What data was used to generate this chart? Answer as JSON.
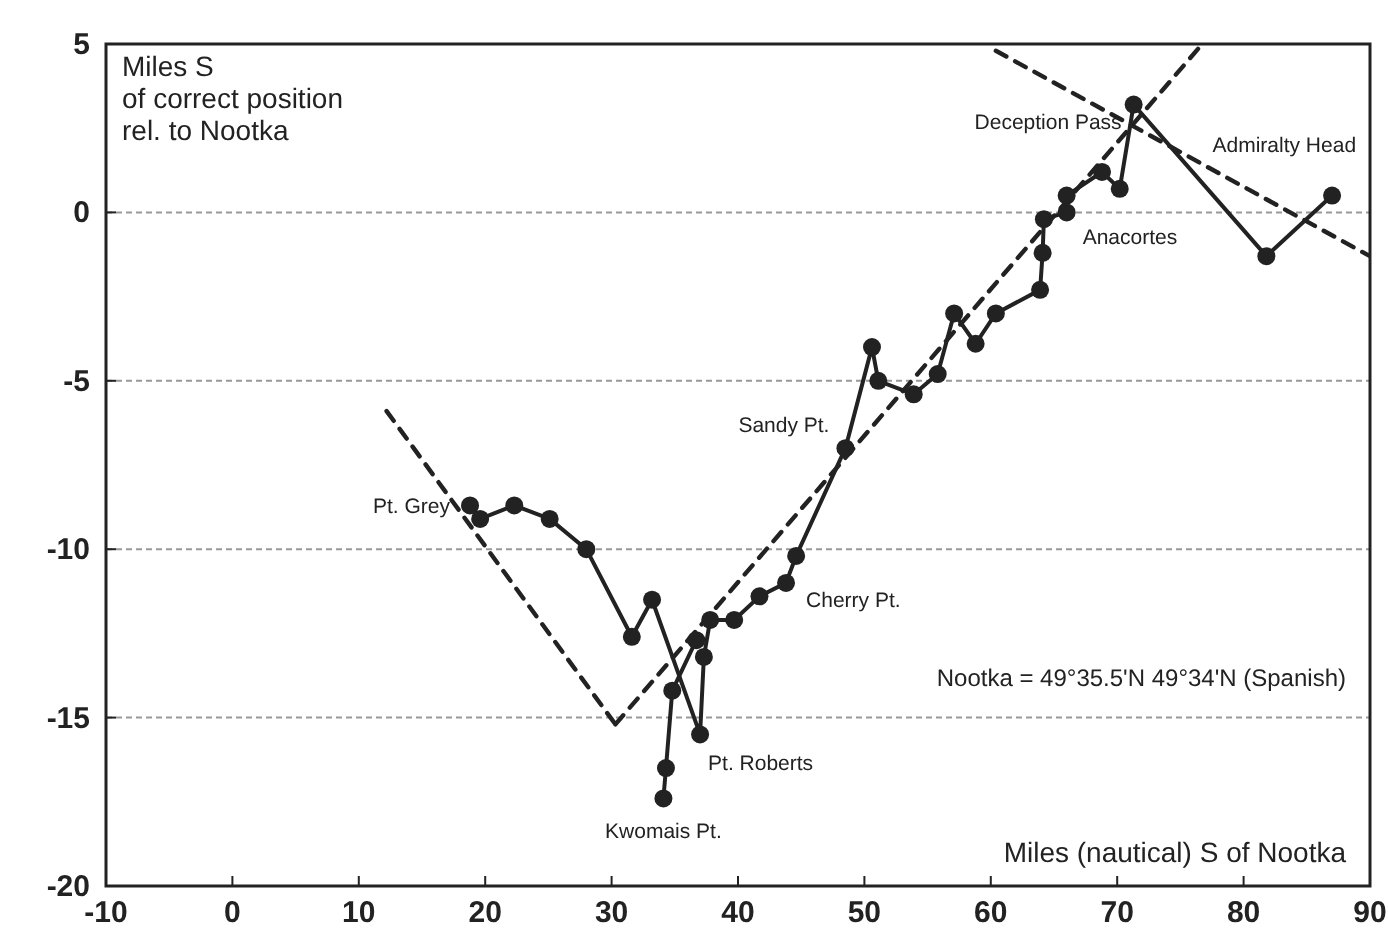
{
  "chart_data": {
    "type": "line",
    "xlabel": "Miles (nautical) S of Nootka",
    "ylabel": "Miles S\nof correct position\nrel. to Nootka",
    "xlim": [
      -10,
      90
    ],
    "ylim": [
      -20,
      5
    ],
    "xticks": [
      -10,
      0,
      10,
      20,
      30,
      40,
      50,
      60,
      70,
      80,
      90
    ],
    "yticks": [
      -20,
      -15,
      -10,
      -5,
      0,
      5
    ],
    "grid": "y",
    "series": [
      {
        "color": "#222222",
        "marker": "circle",
        "line_style": "solid",
        "x": [
          18.8,
          19.6,
          22.3,
          25.1,
          28.0,
          31.6,
          33.2,
          37.0,
          37.3,
          37.8,
          39.7,
          41.7,
          43.8,
          44.6,
          48.5,
          50.6,
          51.1,
          53.9,
          55.8,
          57.1,
          58.8,
          60.4,
          63.9,
          64.1,
          64.2,
          66.0,
          66.0,
          68.8,
          70.2,
          71.3,
          81.8,
          87.0
        ],
        "values": [
          -8.7,
          -9.1,
          -8.7,
          -9.1,
          -10.0,
          -12.6,
          -11.5,
          -15.5,
          -13.2,
          -12.1,
          -12.1,
          -11.4,
          -11.0,
          -10.2,
          -7.0,
          -4.0,
          -5.0,
          -5.4,
          -4.8,
          -3.0,
          -3.9,
          -3.0,
          -2.3,
          -1.2,
          -0.2,
          0.0,
          0.5,
          1.2,
          0.7,
          3.2,
          -1.3,
          0.5
        ]
      },
      {
        "color": "#222222",
        "marker": "circle",
        "line_style": "solid",
        "x": [
          34.1,
          34.3,
          34.8,
          36.7
        ],
        "values": [
          -17.4,
          -16.5,
          -14.2,
          -12.7
        ]
      },
      {
        "type": "line",
        "color": "#222222",
        "marker": "none",
        "line_style": "dashed",
        "x": [
          12.2,
          30.3
        ],
        "values": [
          -5.9,
          -15.2
        ]
      },
      {
        "type": "line",
        "color": "#222222",
        "marker": "none",
        "line_style": "dashed",
        "x": [
          30.3,
          76.5
        ],
        "values": [
          -15.2,
          4.9
        ]
      },
      {
        "type": "line",
        "color": "#222222",
        "marker": "none",
        "line_style": "dashed",
        "x": [
          60.4,
          90
        ],
        "values": [
          4.8,
          -1.3
        ]
      }
    ],
    "annotations": [
      {
        "text": "Pt. Grey",
        "x": 18.8,
        "y": -8.7
      },
      {
        "text": "Pt. Roberts",
        "x": 37.0,
        "y": -15.5
      },
      {
        "text": "Kwomais Pt.",
        "x": 34.1,
        "y": -17.4
      },
      {
        "text": "Cherry Pt.",
        "x": 43.8,
        "y": -11.0
      },
      {
        "text": "Sandy Pt.",
        "x": 48.5,
        "y": -7.0
      },
      {
        "text": "Anacortes",
        "x": 66.0,
        "y": 0.0
      },
      {
        "text": "Deception Pass",
        "x": 71.3,
        "y": 3.2
      },
      {
        "text": "Admiralty Head",
        "x": 87.0,
        "y": 0.5
      },
      "Nootka = 49°35.5'N  49°34'N (Spanish)"
    ]
  }
}
